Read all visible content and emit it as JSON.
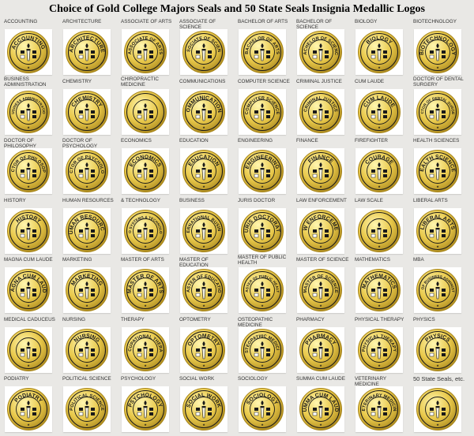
{
  "title": "Choice of Gold College Majors Seals and 50 State Seals Insignia Medallic Logos",
  "colors": {
    "gold_light": "#fff6b0",
    "gold": "#e8c84a",
    "gold_dark": "#a8861c",
    "ink": "#1a1a1a",
    "background": "#e9e8e5"
  },
  "items": [
    {
      "label": "ACCOUNTING",
      "seal": "ACCOUNTING"
    },
    {
      "label": "ARCHITECTURE",
      "seal": "ARCHITECTURE"
    },
    {
      "label": "ASSOCIATE OF ARTS",
      "seal": "ASSOCIATE OF ARTS"
    },
    {
      "label": "ASSOCIATE OF SCIENCE",
      "seal": "ASSOCIATE OF SCIENCE"
    },
    {
      "label": "BACHELOR OF ARTS",
      "seal": "BACHELOR OF ARTS"
    },
    {
      "label": "BACHELOR OF SCIENCE",
      "seal": "BACHELOR OF SCIENCE"
    },
    {
      "label": "BIOLOGY",
      "seal": "BIOLOGY"
    },
    {
      "label": "BIOTECHNOLOGY",
      "seal": "BIOTECHNOLOGY"
    },
    {
      "label": "BUSINESS ADMINISTRATION",
      "seal": "BUSINESS ADMINISTRATION"
    },
    {
      "label": "CHEMISTRY",
      "seal": "CHEMISTRY"
    },
    {
      "label": "CHIROPRACTIC MEDICINE",
      "seal": ""
    },
    {
      "label": "COMMUNICATIONS",
      "seal": "COMMUNICATIONS"
    },
    {
      "label": "COMPUTER SCIENCE",
      "seal": "COMPUTER SCIENCE"
    },
    {
      "label": "CRIMINAL JUSTICE",
      "seal": "CRIMINAL JUSTICE"
    },
    {
      "label": "CUM LAUDE",
      "seal": "CUM LAUDE"
    },
    {
      "label": "DOCTOR OF DENTAL SURGERY",
      "seal": "DOCTOR OF DENTAL SURGERY"
    },
    {
      "label": "DOCTOR OF PHILOSOPHY",
      "seal": "DOCTOR OF PHILOSOPHY"
    },
    {
      "label": "DOCTOR OF PSYCHOLOGY",
      "seal": "DOCTOR OF PSYCHOLOGY"
    },
    {
      "label": "ECONOMICS",
      "seal": "ECONOMICS"
    },
    {
      "label": "EDUCATION",
      "seal": "EDUCATION"
    },
    {
      "label": "ENGINEERING",
      "seal": "ENGINEERING"
    },
    {
      "label": "FINANCE",
      "seal": "FINANCE"
    },
    {
      "label": "FIREFIGHTER",
      "seal": "COURAGE"
    },
    {
      "label": "HEALTH SCIENCES",
      "seal": "HEALTH SCIENCES"
    },
    {
      "label": "HISTORY",
      "seal": "HISTORY"
    },
    {
      "label": "HUMAN RESOURCES",
      "seal": "HUMAN RESOURCES"
    },
    {
      "label": "& TECHNOLOGY",
      "seal": "INFO SYSTEMS & TECHNOLOGY"
    },
    {
      "label": "BUSINESS",
      "seal": "INTERNATIONAL BUSINESS"
    },
    {
      "label": "JURIS DOCTOR",
      "seal": "JURIS DOCTORATE"
    },
    {
      "label": "LAW ENFORCEMENT",
      "seal": "LAW ENFORCEMENT"
    },
    {
      "label": "LAW SCALE",
      "seal": ""
    },
    {
      "label": "LIBERAL ARTS",
      "seal": "LIBERAL ARTS"
    },
    {
      "label": "MAGNA CUM LAUDE",
      "seal": "MAGNA CUM LAUDE"
    },
    {
      "label": "MARKETING",
      "seal": "MARKETING"
    },
    {
      "label": "MASTER OF ARTS",
      "seal": "MASTER OF ARTS"
    },
    {
      "label": "MASTER OF EDUCATION",
      "seal": "MASTER OF EDUCATION"
    },
    {
      "label": "MASTER OF PUBLIC HEALTH",
      "seal": "MASTER OF PUBLIC HEALTH"
    },
    {
      "label": "MASTER OF SCIENCE",
      "seal": "MASTER OF SCIENCE"
    },
    {
      "label": "MATHEMATICS",
      "seal": "MATHEMATICS"
    },
    {
      "label": "MBA",
      "seal": "MASTER OF BUSINESS ADMINISTRATION"
    },
    {
      "label": "MEDICAL CADUCEUS",
      "seal": ""
    },
    {
      "label": "NURSING",
      "seal": "NURSING"
    },
    {
      "label": "THERAPY",
      "seal": "OCCUPATIONAL THERAPY"
    },
    {
      "label": "OPTOMETRY",
      "seal": "OPTOMETRY"
    },
    {
      "label": "OSTEOPATHIC MEDICINE",
      "seal": "OSTEOPATHIC MEDICINE"
    },
    {
      "label": "PHARMACY",
      "seal": "PHARMACY"
    },
    {
      "label": "PHYSICAL THERAPY",
      "seal": "PHYSICAL THERAPY"
    },
    {
      "label": "PHYSICS",
      "seal": "PHYSICS"
    },
    {
      "label": "PODIATRY",
      "seal": "PODIATRY"
    },
    {
      "label": "POLITICAL SCIENCE",
      "seal": "POLITICAL SCIENCE"
    },
    {
      "label": "PSYCHOLOGY",
      "seal": "PSYCHOLOGY"
    },
    {
      "label": "SOCIAL WORK",
      "seal": "SOCIAL WORK"
    },
    {
      "label": "SOCIOLOGY",
      "seal": "SOCIOLOGY"
    },
    {
      "label": "SUMMA CUM LAUDE",
      "seal": "SUMMA CUM LAUDE"
    },
    {
      "label": "VETERINARY MEDICINE",
      "seal": "VETERINARY MEDICINE"
    },
    {
      "label": "50 State Seals, etc.",
      "seal": ""
    }
  ]
}
